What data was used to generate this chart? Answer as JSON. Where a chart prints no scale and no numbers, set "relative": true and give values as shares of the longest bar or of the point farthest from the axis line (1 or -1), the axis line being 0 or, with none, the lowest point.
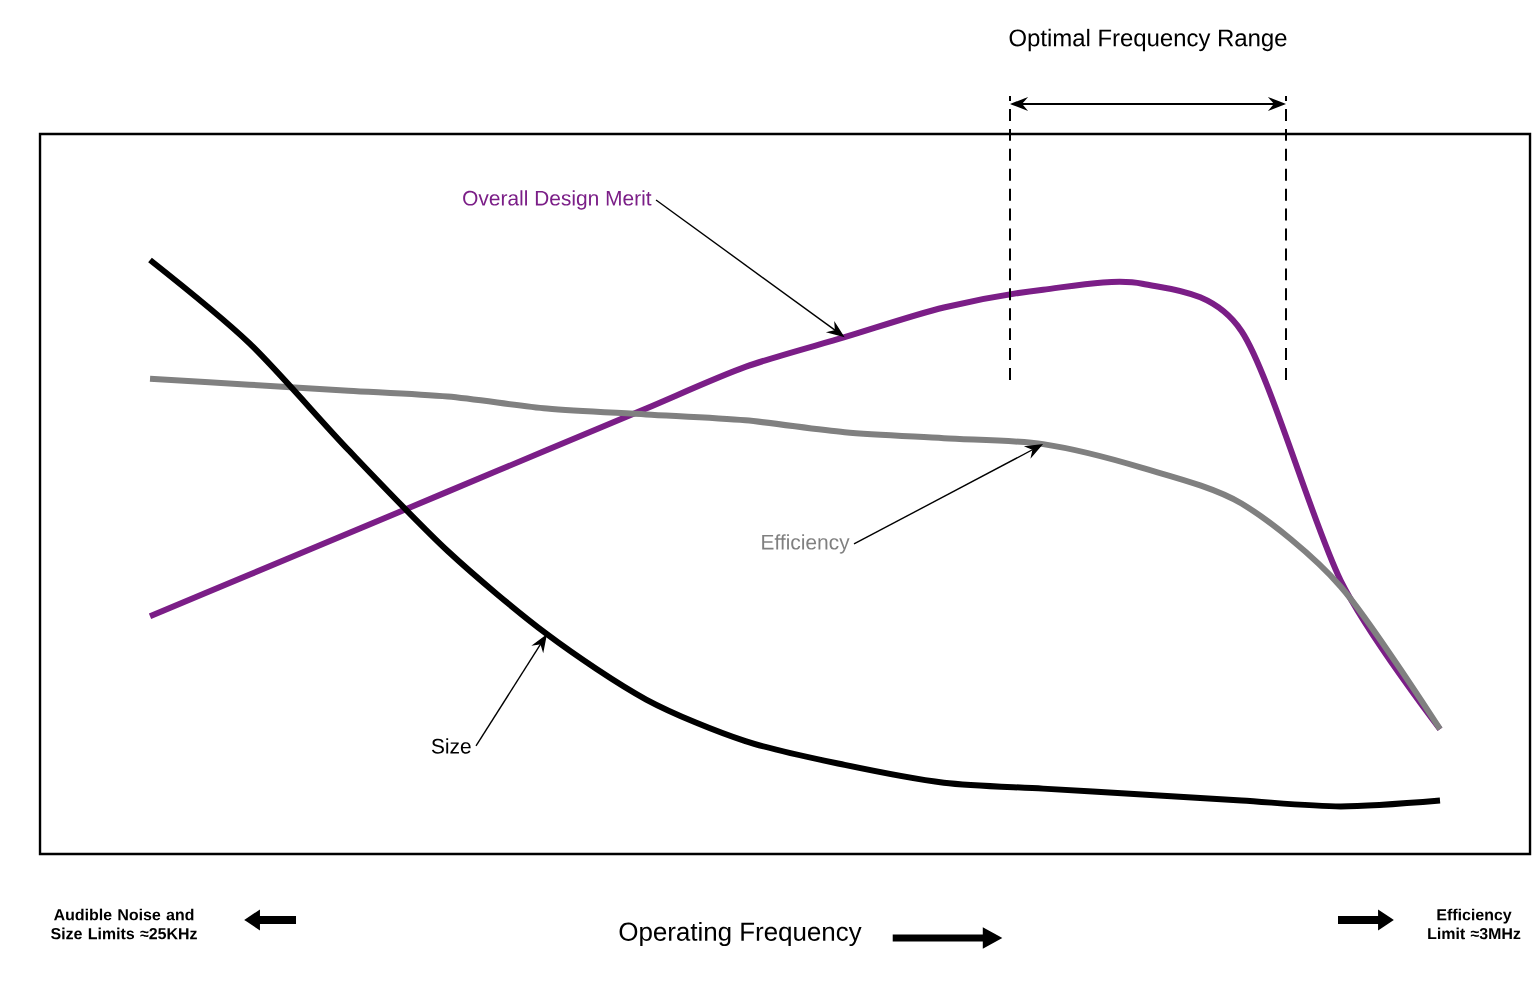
{
  "chart_data": {
    "type": "line",
    "relative": true,
    "xlabel": "Operating Frequency",
    "legend": false,
    "marker": "none",
    "line_style": "solid",
    "categories": [
      null,
      null,
      null,
      null,
      null,
      null,
      null,
      null,
      null,
      null,
      null,
      null,
      null,
      null
    ],
    "series": [
      {
        "name": "Overall Design Merit",
        "color": "#7b1e87",
        "values": [
          0.4,
          0.47,
          0.54,
          0.61,
          0.68,
          0.75,
          0.82,
          0.87,
          0.92,
          0.95,
          0.96,
          0.88,
          0.46,
          0.21
        ]
      },
      {
        "name": "Efficiency",
        "color": "#808080",
        "values": [
          0.8,
          0.79,
          0.78,
          0.77,
          0.75,
          0.74,
          0.73,
          0.71,
          0.7,
          0.69,
          0.65,
          0.59,
          0.45,
          0.21
        ]
      },
      {
        "name": "Size",
        "color": "#000000",
        "values": [
          1.0,
          0.86,
          0.68,
          0.51,
          0.37,
          0.26,
          0.19,
          0.15,
          0.12,
          0.11,
          0.1,
          0.09,
          0.08,
          0.09
        ]
      }
    ],
    "annotations": [
      "Audible Noise and Size Limits ≈25KHz",
      "Efficiency Limit ≈3MHz",
      "Optimal Frequency Range"
    ]
  }
}
